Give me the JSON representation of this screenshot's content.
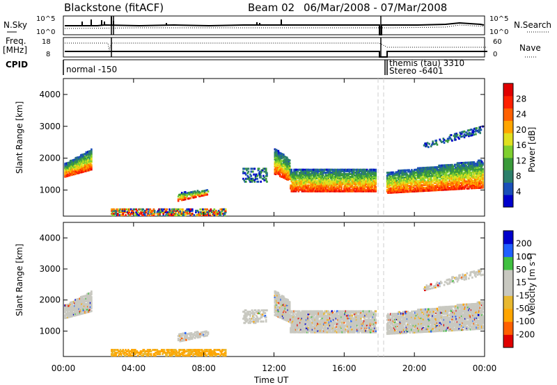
{
  "header": {
    "station": "Blackstone (fitACF)",
    "beam": "Beam 02",
    "dates": "06/Mar/2008 - 07/Mar/2008"
  },
  "top_panels": {
    "nsky_label": "N.Sky",
    "nsearch_label": "N.Search",
    "noise_ticks": [
      "10^5",
      "10^0"
    ],
    "freq_label_1": "Freq.",
    "freq_label_2": "[MHz]",
    "freq_ticks": [
      "18",
      "8"
    ],
    "nave_label": "Nave",
    "nave_ticks": [
      "60",
      "0"
    ],
    "cpid_label": "CPID",
    "cpid_entries": [
      {
        "text": "normal -150"
      },
      {
        "text": "themis (tau) 3310"
      },
      {
        "text": "Stereo -6401"
      }
    ]
  },
  "colors": {
    "power_scale": [
      "#0000cc",
      "#1a4fb8",
      "#2c7f6a",
      "#3a9a3a",
      "#7fcf2f",
      "#e0e020",
      "#ffa500",
      "#ff6000",
      "#ff2000",
      "#e00000"
    ],
    "velocity_scale": [
      "#e00000",
      "#ff6000",
      "#ffa500",
      "#e8b830",
      "#c8c8c0",
      "#c8c8c0",
      "#40c040",
      "#2060ff",
      "#0000cc"
    ],
    "ground_scatter": "#c8c8c0"
  },
  "chart_data": [
    {
      "type": "heatmap",
      "name": "power",
      "ylabel": "Slant Range [km]",
      "ylim": [
        180,
        4500
      ],
      "y_ticks": [
        "1000",
        "2000",
        "3000",
        "4000"
      ],
      "colorbar_label": "Power [dB]",
      "colorbar_ticks": [
        "4",
        "8",
        "12",
        "16",
        "20",
        "24",
        "28"
      ],
      "x_ticks": [
        "00:00",
        "04:00",
        "08:00",
        "12:00",
        "16:00",
        "20:00",
        "00:00"
      ],
      "xlim_hours": [
        0,
        24
      ]
    },
    {
      "type": "heatmap",
      "name": "velocity",
      "ylabel": "Slant Range [km]",
      "ylim": [
        180,
        4500
      ],
      "y_ticks": [
        "1000",
        "2000",
        "3000",
        "4000"
      ],
      "colorbar_label": "Velocity [m s",
      "colorbar_label_sup": "-1",
      "colorbar_label_end": "]",
      "colorbar_ticks": [
        "-200",
        "-100",
        "-50",
        "-15",
        "15",
        "50",
        "100",
        "200"
      ],
      "x_ticks": [
        "00:00",
        "04:00",
        "08:00",
        "12:00",
        "16:00",
        "20:00",
        "00:00"
      ],
      "xlabel": "Time UT",
      "xlim_hours": [
        0,
        24
      ]
    }
  ]
}
